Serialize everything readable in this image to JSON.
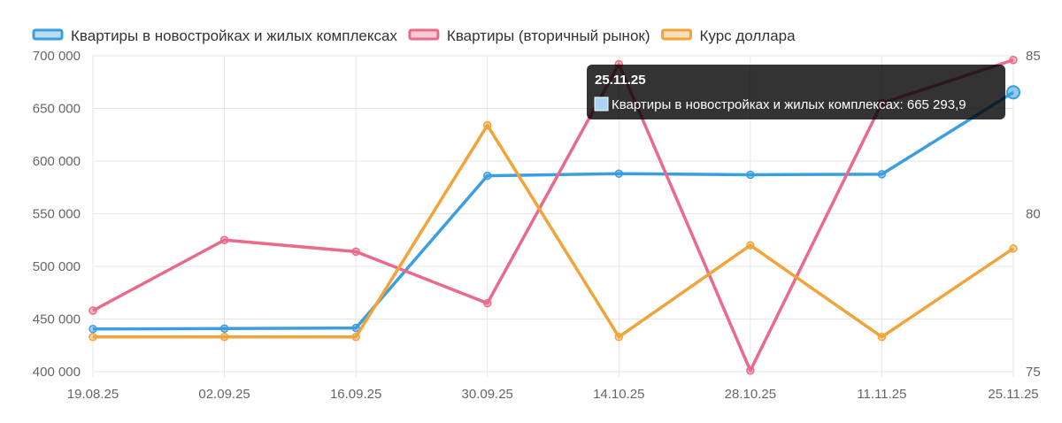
{
  "chart_data": {
    "type": "line",
    "categories": [
      "19.08.25",
      "02.09.25",
      "16.09.25",
      "30.09.25",
      "14.10.25",
      "28.10.25",
      "11.11.25",
      "25.11.25"
    ],
    "y_left": {
      "min": 400000,
      "max": 700000,
      "ticks": [
        "400 000",
        "450 000",
        "500 000",
        "550 000",
        "600 000",
        "650 000",
        "700 000"
      ]
    },
    "y_right": {
      "min": 75,
      "max": 85,
      "ticks": [
        "75",
        "80",
        "85"
      ]
    },
    "grid": true,
    "legend_position": "top-left",
    "series": [
      {
        "name": "Квартиры в новостройках и жилых комплексах",
        "axis": "left",
        "color": "#3a9ee0",
        "values": [
          440500,
          441000,
          441500,
          586000,
          588000,
          587000,
          587500,
          665293.9
        ]
      },
      {
        "name": "Квартиры (вторичный рынок)",
        "axis": "left",
        "color": "#ea6a8a",
        "values": [
          458000,
          525000,
          514000,
          465000,
          692000,
          401000,
          655000,
          696000
        ]
      },
      {
        "name": "Курс доллара",
        "axis": "right",
        "color": "#f2a33a",
        "values": [
          76.1,
          76.1,
          76.1,
          82.8,
          76.1,
          79.0,
          76.1,
          78.9
        ]
      }
    ],
    "tooltip": {
      "title": "25.11.25",
      "text": "Квартиры в новостройках и жилых комплексах: 665 293,9",
      "swatch_color": "#a8d4f5"
    }
  }
}
